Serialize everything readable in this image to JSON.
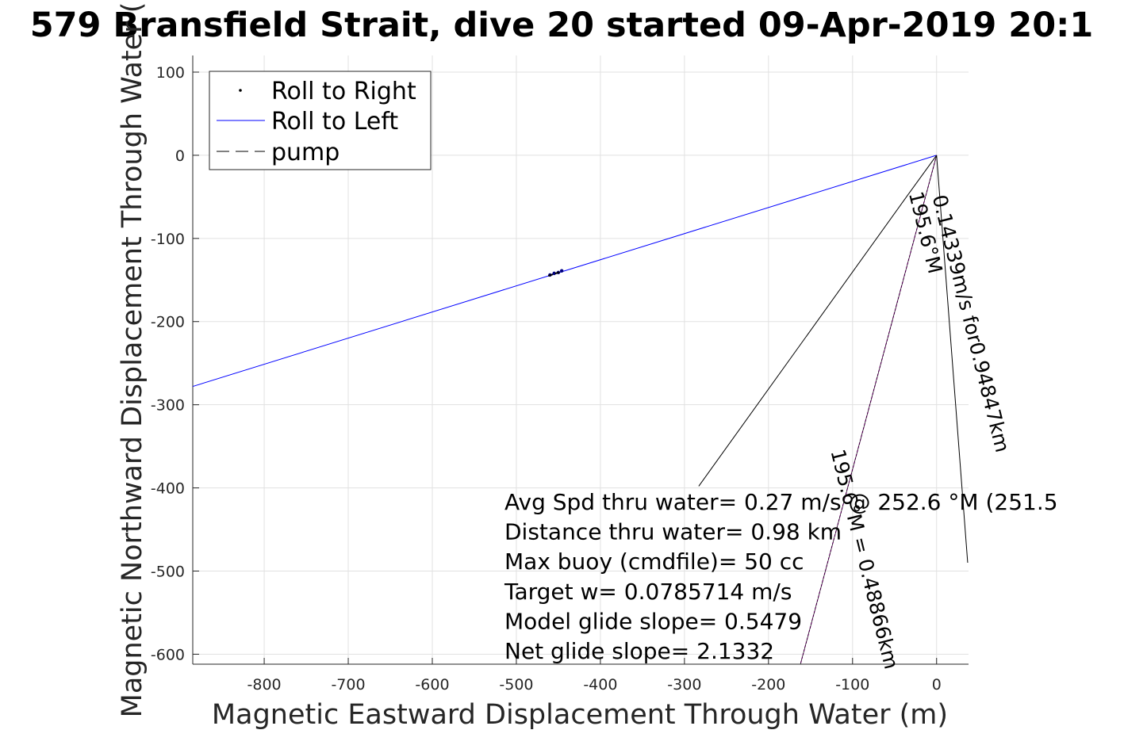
{
  "chart_data": {
    "type": "line",
    "title": "579 Bransfield Strait, dive 20 started 09-Apr-2019 20:1",
    "xlabel": "Magnetic Eastward Displacement Through Water (m)",
    "ylabel": "Magnetic Northward Displacement Through Water (",
    "xlim": [
      -885,
      38
    ],
    "ylim": [
      -612,
      120
    ],
    "grid": true,
    "xticks": [
      -800,
      -700,
      -600,
      -500,
      -400,
      -300,
      -200,
      -100,
      0
    ],
    "xtick_labels": [
      "-800",
      "-700",
      "-600",
      "-500",
      "-400",
      "-300",
      "-200",
      "-100",
      "0"
    ],
    "yticks": [
      100,
      0,
      -100,
      -200,
      -300,
      -400,
      -500,
      -600
    ],
    "ytick_labels": [
      "100",
      "0",
      "-100",
      "-200",
      "-300",
      "-400",
      "-500",
      "-600"
    ],
    "legend": {
      "placement": "top-left",
      "entries": [
        {
          "label": "Roll to Right",
          "style": "dot"
        },
        {
          "label": "Roll to Left",
          "style": "blue-line"
        },
        {
          "label": "pump",
          "style": "dashed"
        }
      ]
    },
    "series": [
      {
        "name": "Roll to Left",
        "color": "#0000ff",
        "x": [
          0,
          -885
        ],
        "y": [
          0,
          -278
        ]
      },
      {
        "name": "Roll to Right",
        "color": "#000080",
        "x": [
          -460,
          -455,
          -450,
          -446
        ],
        "y": [
          -144,
          -142,
          -141,
          -139
        ]
      },
      {
        "name": "pump",
        "color": "#000000",
        "x": [
          -462,
          -447
        ],
        "y": [
          -145,
          -140
        ]
      },
      {
        "name": "heading-line",
        "color": "#cc00cc",
        "x": [
          0,
          -162
        ],
        "y": [
          0,
          -612
        ]
      },
      {
        "name": "line-a",
        "color": "#000000",
        "x": [
          0,
          -33
        ],
        "y": [
          0,
          -46
        ]
      },
      {
        "name": "line-b",
        "color": "#000000",
        "x": [
          -33,
          -283
        ],
        "y": [
          -46,
          -398
        ]
      },
      {
        "name": "line-c",
        "color": "#000000",
        "x": [
          0,
          37
        ],
        "y": [
          0,
          -490
        ]
      }
    ],
    "rotated_annotations": [
      {
        "text": "0.14339m/s for0.94847km",
        "anchor_x": -5,
        "anchor_y": -50,
        "angle_deg": 76
      },
      {
        "text": "195.6°M",
        "anchor_x": -33,
        "anchor_y": -46,
        "angle_deg": 76
      },
      {
        "text": "195.6°M = 0.48866km",
        "anchor_x": -126,
        "anchor_y": -356,
        "angle_deg": 76
      }
    ],
    "annotations": [
      "Avg Spd thru water=  0.27 m/s @ 252.6 °M (251.5",
      "Distance thru water=  0.98 km",
      "Max buoy (cmdfile)= 50 cc",
      "Target w= 0.0785714 m/s",
      "Model glide slope= 0.5479",
      "Net glide slope= 2.1332"
    ]
  }
}
